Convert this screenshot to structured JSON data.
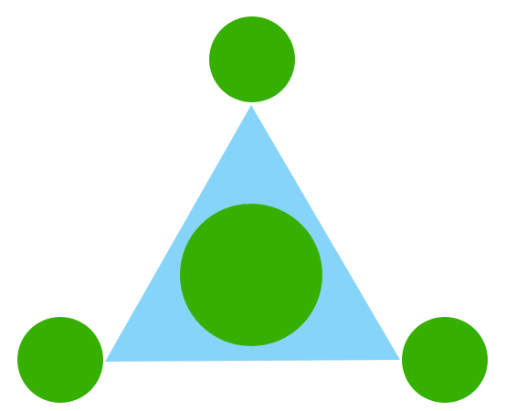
{
  "diagram": {
    "shapes": {
      "triangle": {
        "fill": "#87D4FA"
      },
      "circle_color": "#36B000"
    },
    "circles": [
      {
        "role": "top-vertex",
        "size": "small"
      },
      {
        "role": "left-vertex",
        "size": "small"
      },
      {
        "role": "right-vertex",
        "size": "small"
      },
      {
        "role": "center",
        "size": "large"
      }
    ]
  }
}
